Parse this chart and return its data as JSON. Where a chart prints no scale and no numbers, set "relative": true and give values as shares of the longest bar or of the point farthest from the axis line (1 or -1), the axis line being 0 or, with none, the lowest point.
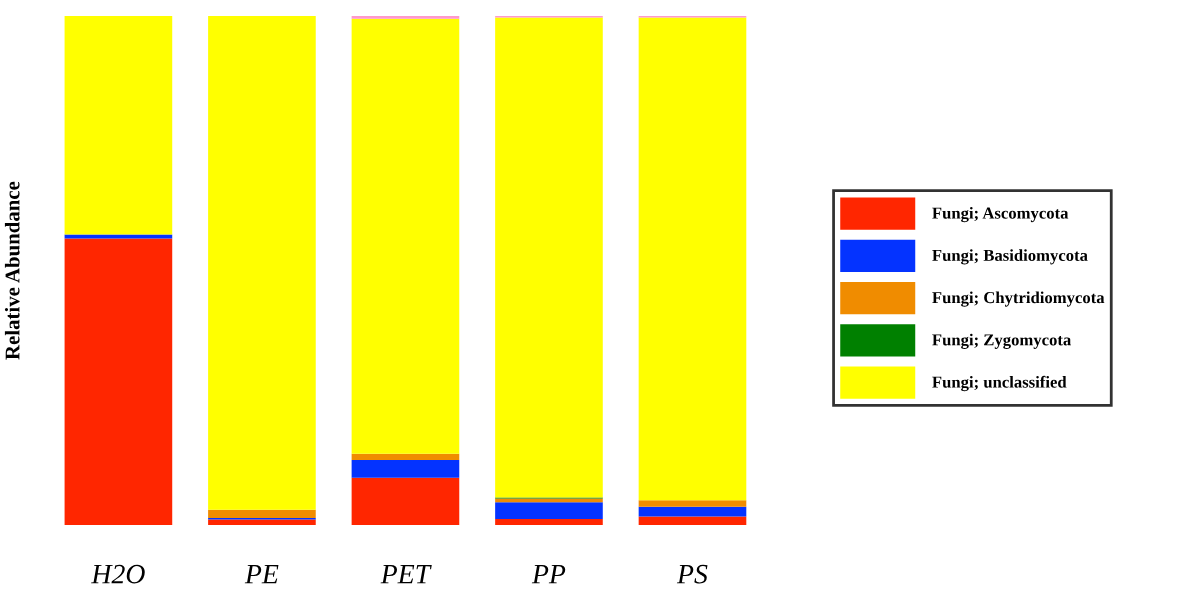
{
  "chart_data": {
    "type": "bar",
    "stacked": true,
    "relative": true,
    "ylabel": "Relative Abundance",
    "categories": [
      "H2O",
      "PE",
      "PET",
      "PP",
      "PS"
    ],
    "series": [
      {
        "name": "Fungi; Ascomycota",
        "color": "#ff2600",
        "values": [
          0.563,
          0.011,
          0.093,
          0.012,
          0.017
        ]
      },
      {
        "name": "Fungi; Basidiomycota",
        "color": "#0433ff",
        "values": [
          0.008,
          0.003,
          0.035,
          0.033,
          0.019
        ]
      },
      {
        "name": "Fungi; Chytridiomycota",
        "color": "#f08c00",
        "values": [
          0,
          0.016,
          0.012,
          0.007,
          0.013
        ]
      },
      {
        "name": "Fungi; Zygomycota",
        "color": "#008000",
        "values": [
          0,
          0,
          0,
          0.002,
          0
        ]
      },
      {
        "name": "Fungi; unclassified",
        "color": "#ffff00",
        "values": [
          0.429,
          0.97,
          0.855,
          0.943,
          0.948
        ]
      },
      {
        "color": "#ff99cc",
        "values": [
          0,
          0,
          0.005,
          0.003,
          0.003
        ]
      }
    ],
    "legend": "right",
    "grid": false
  }
}
